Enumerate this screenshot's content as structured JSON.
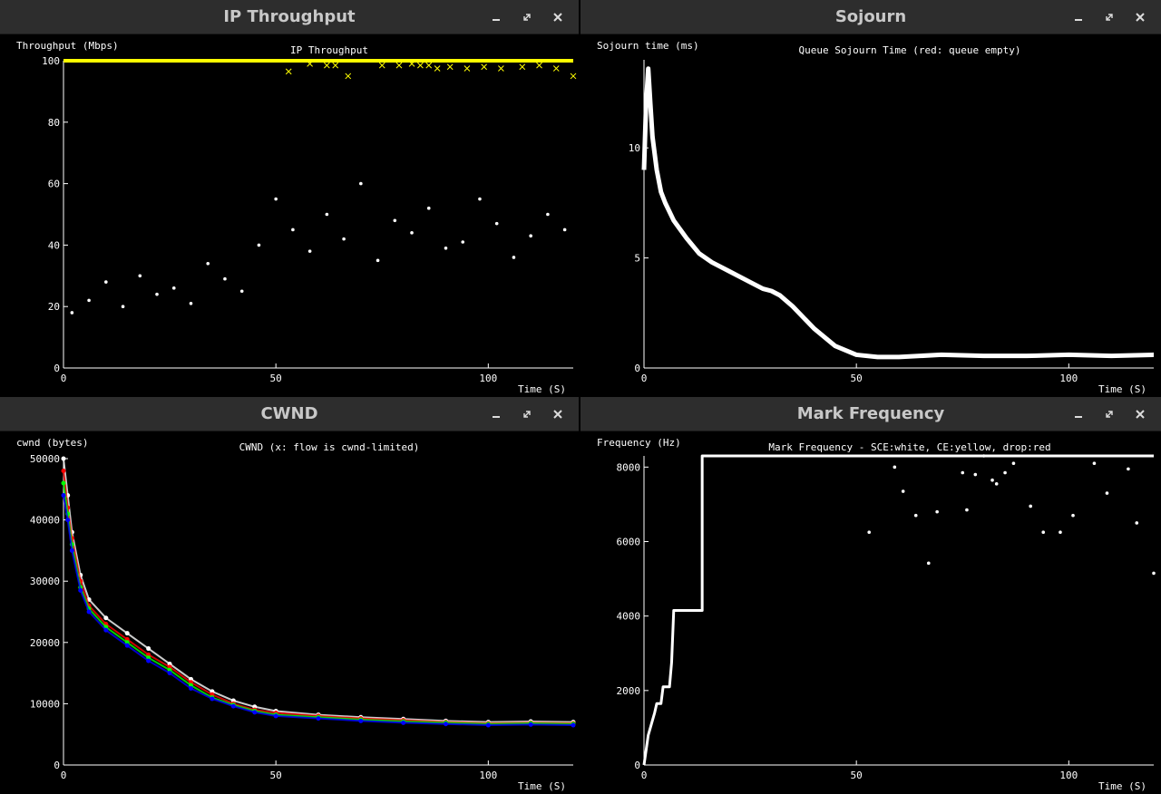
{
  "windows": [
    {
      "key": "ip_throughput",
      "title": "IP Throughput"
    },
    {
      "key": "sojourn",
      "title": "Sojourn"
    },
    {
      "key": "cwnd",
      "title": "CWND"
    },
    {
      "key": "mark_frequency",
      "title": "Mark Frequency"
    }
  ],
  "colors": {
    "titlebar": "#2d2d2d",
    "title_text": "#c8c8c8",
    "background": "#000000",
    "axis": "#ffffff",
    "series": [
      "#ffffff",
      "#ff0000",
      "#00ff00",
      "#0000ff"
    ],
    "highlight": "#ffff00"
  },
  "chart_data": [
    {
      "key": "ip_throughput",
      "type": "scatter",
      "title": "IP Throughput",
      "xlabel": "Time (S)",
      "ylabel": "Throughput (Mbps)",
      "xlim": [
        0,
        120
      ],
      "ylim": [
        0,
        100
      ],
      "xticks": [
        0,
        50,
        100
      ],
      "yticks": [
        0,
        20,
        40,
        60,
        80,
        100
      ],
      "series": [
        {
          "color": "#ffff00",
          "style": "line",
          "x": [
            0,
            120
          ],
          "y": [
            100,
            100
          ]
        },
        {
          "color": "#ffff00",
          "style": "x",
          "x": [
            53,
            58,
            62,
            64,
            67,
            75,
            79,
            82,
            84,
            86,
            88,
            91,
            95,
            99,
            103,
            108,
            112,
            116,
            120
          ],
          "y": [
            96.5,
            99,
            98.5,
            98.5,
            95,
            98.5,
            98.5,
            99,
            98.5,
            98.5,
            97.5,
            98,
            97.5,
            98,
            97.5,
            98,
            98.5,
            97.5,
            95
          ]
        },
        {
          "color": "#ffffff",
          "style": "dots",
          "x": [
            2,
            6,
            10,
            14,
            18,
            22,
            26,
            30,
            34,
            38,
            42,
            46,
            50,
            54,
            58,
            62,
            66,
            70,
            74,
            78,
            82,
            86,
            90,
            94,
            98,
            102,
            106,
            110,
            114,
            118
          ],
          "y": [
            18,
            22,
            28,
            20,
            30,
            24,
            26,
            21,
            34,
            29,
            25,
            40,
            55,
            45,
            38,
            50,
            42,
            60,
            35,
            48,
            44,
            52,
            39,
            41,
            55,
            47,
            36,
            43,
            50,
            45
          ]
        }
      ]
    },
    {
      "key": "sojourn",
      "type": "line",
      "title": "Queue Sojourn Time (red: queue empty)",
      "xlabel": "Time (S)",
      "ylabel": "Sojourn time (ms)",
      "xlim": [
        0,
        120
      ],
      "ylim": [
        0,
        14
      ],
      "xticks": [
        0,
        50,
        100
      ],
      "yticks": [
        0,
        5,
        10
      ],
      "series": [
        {
          "color": "#ffffff",
          "x": [
            0,
            0.5,
            1,
            1.5,
            2,
            3,
            4,
            5,
            7,
            10,
            13,
            16,
            20,
            25,
            28,
            30,
            32,
            35,
            40,
            45,
            50,
            55,
            60,
            65,
            70,
            80,
            90,
            100,
            110,
            120
          ],
          "y": [
            9,
            12,
            13.6,
            12,
            10.5,
            9,
            8,
            7.5,
            6.7,
            5.9,
            5.2,
            4.8,
            4.4,
            3.9,
            3.6,
            3.5,
            3.3,
            2.8,
            1.8,
            1.0,
            0.6,
            0.5,
            0.5,
            0.55,
            0.6,
            0.55,
            0.55,
            0.6,
            0.55,
            0.6
          ]
        }
      ]
    },
    {
      "key": "cwnd",
      "type": "scatter",
      "title": "CWND (x: flow is cwnd-limited)",
      "xlabel": "Time (S)",
      "ylabel": "cwnd (bytes)",
      "xlim": [
        0,
        120
      ],
      "ylim": [
        0,
        50000
      ],
      "xticks": [
        0,
        50,
        100
      ],
      "yticks": [
        0,
        10000,
        20000,
        30000,
        40000,
        50000
      ],
      "series": [
        {
          "color": "#ffffff",
          "x": [
            0,
            1,
            2,
            4,
            6,
            10,
            15,
            20,
            25,
            30,
            35,
            40,
            45,
            50,
            60,
            70,
            80,
            90,
            100,
            110,
            120
          ],
          "y": [
            50000,
            44000,
            38000,
            31000,
            27000,
            24000,
            21500,
            19000,
            16500,
            14000,
            12000,
            10500,
            9500,
            8800,
            8200,
            7800,
            7500,
            7200,
            7000,
            7100,
            7000
          ]
        },
        {
          "color": "#ff0000",
          "x": [
            0,
            1,
            2,
            4,
            6,
            10,
            15,
            20,
            25,
            30,
            35,
            40,
            45,
            50,
            60,
            70,
            80,
            90,
            100,
            110,
            120
          ],
          "y": [
            48000,
            42000,
            37000,
            30000,
            26000,
            23000,
            20500,
            18000,
            16000,
            13500,
            11500,
            10000,
            9000,
            8500,
            8000,
            7600,
            7300,
            7000,
            6800,
            6900,
            6800
          ]
        },
        {
          "color": "#00ff00",
          "x": [
            0,
            1,
            2,
            4,
            6,
            10,
            15,
            20,
            25,
            30,
            35,
            40,
            45,
            50,
            60,
            70,
            80,
            90,
            100,
            110,
            120
          ],
          "y": [
            46000,
            41000,
            36000,
            29000,
            25500,
            22500,
            20000,
            17500,
            15500,
            13000,
            11000,
            9800,
            8800,
            8200,
            7800,
            7400,
            7100,
            6900,
            6700,
            6800,
            6700
          ]
        },
        {
          "color": "#0000ff",
          "x": [
            0,
            1,
            2,
            4,
            6,
            10,
            15,
            20,
            25,
            30,
            35,
            40,
            45,
            50,
            60,
            70,
            80,
            90,
            100,
            110,
            120
          ],
          "y": [
            44000,
            40000,
            35000,
            28500,
            25000,
            22000,
            19500,
            17000,
            15000,
            12500,
            10800,
            9600,
            8600,
            8000,
            7600,
            7200,
            6900,
            6700,
            6500,
            6600,
            6500
          ]
        }
      ]
    },
    {
      "key": "mark_frequency",
      "type": "line",
      "title": "Mark Frequency - SCE:white, CE:yellow, drop:red",
      "xlabel": "Time (S)",
      "ylabel": "Frequency (Hz)",
      "xlim": [
        0,
        120
      ],
      "ylim": [
        0,
        8300
      ],
      "xticks": [
        0,
        50,
        100
      ],
      "yticks": [
        0,
        2000,
        4000,
        6000,
        8000
      ],
      "series": [
        {
          "color": "#ffffff",
          "style": "step",
          "x": [
            0,
            1,
            1.5,
            2,
            2.5,
            3,
            4,
            4.5,
            6,
            6.5,
            7,
            13.7,
            13.7,
            120
          ],
          "y": [
            0,
            800,
            1000,
            1200,
            1400,
            1650,
            1650,
            2100,
            2100,
            2750,
            4150,
            4150,
            8300,
            8300
          ]
        },
        {
          "color": "#ffffff",
          "style": "points",
          "x": [
            53,
            59,
            61,
            64,
            67,
            69,
            75,
            76,
            78,
            80,
            82,
            83,
            85,
            87,
            91,
            94,
            98,
            101,
            106,
            109,
            114,
            116,
            120
          ],
          "y": [
            6250,
            8000,
            7350,
            6700,
            5420,
            6800,
            7850,
            6850,
            7800,
            8300,
            7650,
            7550,
            7850,
            8100,
            6950,
            6250,
            6250,
            6700,
            8100,
            7300,
            7950,
            6500,
            5150
          ]
        }
      ]
    }
  ]
}
